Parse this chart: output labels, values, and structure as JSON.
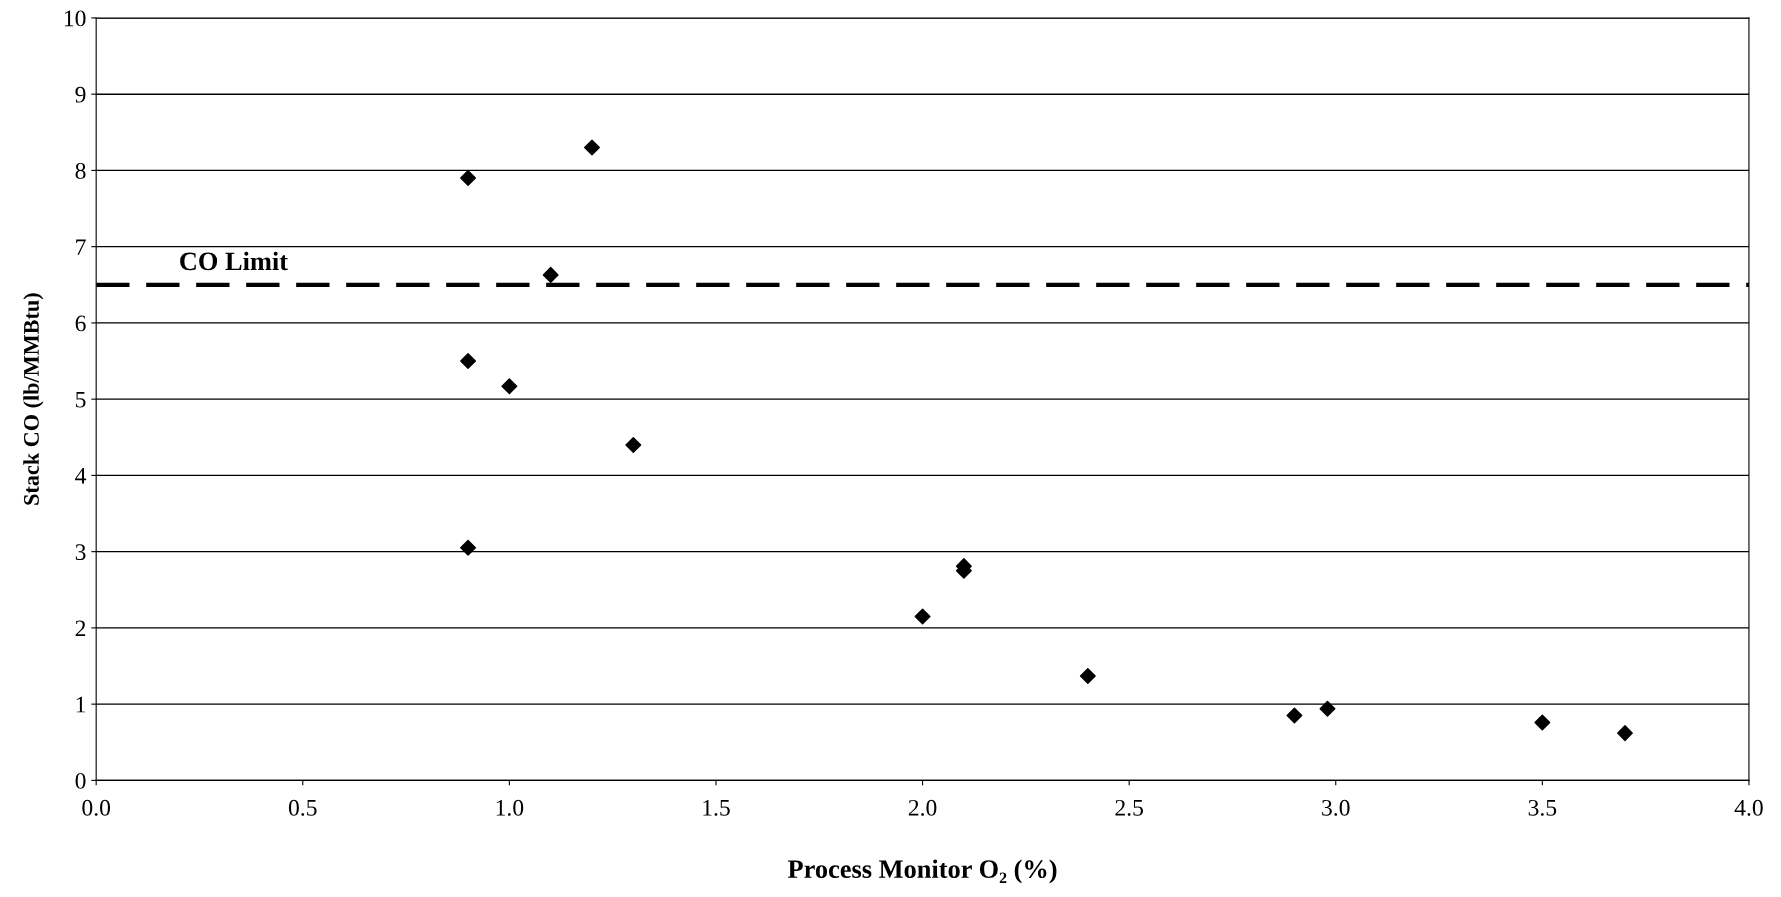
{
  "chart_data": {
    "type": "scatter",
    "xlabel": "Process Monitor O₂ (%)",
    "ylabel": "Stack CO (lb/MMBtu)",
    "x": [
      0.9,
      1.2,
      1.1,
      0.9,
      1.0,
      1.3,
      0.9,
      2.1,
      2.1,
      2.0,
      2.4,
      2.9,
      2.98,
      3.5,
      3.7
    ],
    "series": [
      {
        "color": "#000000",
        "values": [
          7.9,
          8.3,
          6.63,
          5.5,
          5.17,
          4.4,
          3.05,
          2.81,
          2.75,
          2.15,
          1.37,
          0.85,
          0.94,
          0.76,
          0.62
        ]
      }
    ],
    "marker": "diamond",
    "grid": "y",
    "xlim": [
      0,
      4
    ],
    "ylim": [
      0,
      10
    ],
    "xticks": [
      {
        "value": 0,
        "label": "0.0"
      },
      {
        "value": 0.5,
        "label": "0.5"
      },
      {
        "value": 1,
        "label": "1.0"
      },
      {
        "value": 1.5,
        "label": "1.5"
      },
      {
        "value": 2,
        "label": "2.0"
      },
      {
        "value": 2.5,
        "label": "2.5"
      },
      {
        "value": 3,
        "label": "3.0"
      },
      {
        "value": 3.5,
        "label": "3.5"
      },
      {
        "value": 4,
        "label": "4.0"
      }
    ],
    "yticks": [
      0,
      1,
      2,
      3,
      4,
      5,
      6,
      7,
      8,
      9,
      10
    ],
    "ref_lines": [
      {
        "axis": "y",
        "value": 6.5,
        "label": "CO Limit",
        "color": "#000000",
        "line_style": "dashed"
      }
    ]
  }
}
